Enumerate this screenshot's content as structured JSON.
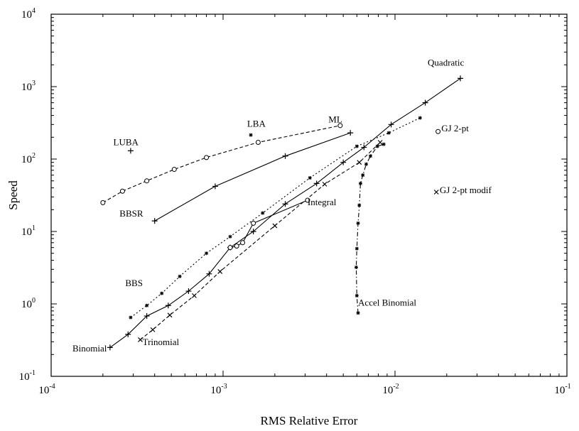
{
  "chart_data": {
    "type": "scatter",
    "title": "",
    "xlabel": "RMS Relative Error",
    "ylabel": "Speed",
    "xscale": "log",
    "yscale": "log",
    "xlim": [
      0.0001,
      0.1
    ],
    "ylim": [
      0.1,
      10000
    ],
    "grid": false,
    "x_ticks": [
      {
        "value": 0.0001,
        "base": "10",
        "exp": "-4"
      },
      {
        "value": 0.001,
        "base": "10",
        "exp": "-3"
      },
      {
        "value": 0.01,
        "base": "10",
        "exp": "-2"
      },
      {
        "value": 0.1,
        "base": "10",
        "exp": "-1"
      }
    ],
    "y_ticks": [
      {
        "value": 0.1,
        "base": "10",
        "exp": "-1"
      },
      {
        "value": 1,
        "base": "10",
        "exp": "0"
      },
      {
        "value": 10,
        "base": "10",
        "exp": "1"
      },
      {
        "value": 100,
        "base": "10",
        "exp": "2"
      },
      {
        "value": 1000,
        "base": "10",
        "exp": "3"
      },
      {
        "value": 10000,
        "base": "10",
        "exp": "4"
      }
    ],
    "series": [
      {
        "label": "Binomial / Quadratic",
        "marker": "+",
        "line": "solid",
        "x": [
          0.00022,
          0.00028,
          0.00036,
          0.00048,
          0.00063,
          0.00083,
          0.0011,
          0.0015,
          0.0023,
          0.0035,
          0.005,
          0.0066,
          0.0095,
          0.015,
          0.024
        ],
        "y": [
          0.25,
          0.38,
          0.68,
          0.95,
          1.5,
          2.6,
          6.0,
          10,
          24,
          46,
          90,
          145,
          300,
          600,
          1300
        ]
      },
      {
        "label": "BBSR",
        "marker": "+",
        "line": "solid",
        "x": [
          0.0004,
          0.0009,
          0.0023,
          0.0055
        ],
        "y": [
          14,
          42,
          110,
          230
        ]
      },
      {
        "label": "ML",
        "marker": "o",
        "line": "dashed",
        "x": [
          0.0002,
          0.00026,
          0.00036,
          0.00052,
          0.0008,
          0.0016,
          0.0048
        ],
        "y": [
          25,
          36,
          50,
          72,
          105,
          170,
          290
        ]
      },
      {
        "label": "BBS",
        "marker": "*",
        "line": "dotted",
        "x": [
          0.00029,
          0.00036,
          0.00044,
          0.00056,
          0.0008,
          0.0011,
          0.0017,
          0.0032,
          0.006,
          0.0092,
          0.014
        ],
        "y": [
          0.65,
          0.95,
          1.4,
          2.4,
          5.0,
          8.5,
          18,
          55,
          150,
          230,
          370
        ]
      },
      {
        "label": "Trinomial",
        "marker": "x",
        "line": "dashed",
        "x": [
          0.00033,
          0.00039,
          0.00049,
          0.00068,
          0.00096,
          0.002,
          0.0039,
          0.0062,
          0.0082
        ],
        "y": [
          0.32,
          0.44,
          0.7,
          1.3,
          2.8,
          12,
          45,
          90,
          170
        ]
      },
      {
        "label": "Integral",
        "marker": "o",
        "line": "solid",
        "x": [
          0.0011,
          0.0012,
          0.0013,
          0.0015,
          0.0031
        ],
        "y": [
          6.0,
          6.3,
          7.0,
          13,
          27
        ]
      },
      {
        "label": "Accel Binomial",
        "marker": "*",
        "line": "dash-dot",
        "x": [
          0.0061,
          0.006,
          0.00595,
          0.006,
          0.0061,
          0.0062,
          0.0063,
          0.0065,
          0.0068,
          0.0072,
          0.0079,
          0.0086
        ],
        "y": [
          0.75,
          1.3,
          3.2,
          5.8,
          13,
          23,
          46,
          60,
          85,
          110,
          150,
          160
        ]
      },
      {
        "label": "LUBA",
        "marker": "+",
        "line": "none",
        "x": [
          0.00029
        ],
        "y": [
          130
        ]
      },
      {
        "label": "LBA",
        "marker": "*",
        "line": "none",
        "x": [
          0.00145
        ],
        "y": [
          215
        ]
      },
      {
        "label": "GJ 2-pt",
        "marker": "o",
        "line": "none",
        "x": [
          0.0178
        ],
        "y": [
          240
        ]
      },
      {
        "label": "GJ 2-pt modif",
        "marker": "x",
        "line": "none",
        "x": [
          0.0174
        ],
        "y": [
          35
        ]
      }
    ],
    "annotations": [
      {
        "text": "Quadratic",
        "x": 0.0155,
        "y": 1950
      },
      {
        "text": "ML",
        "x": 0.0041,
        "y": 320
      },
      {
        "text": "LBA",
        "x": 0.00138,
        "y": 280
      },
      {
        "text": "LUBA",
        "x": 0.00023,
        "y": 155
      },
      {
        "text": "GJ 2-pt",
        "x": 0.0186,
        "y": 240
      },
      {
        "text": "GJ 2-pt modif",
        "x": 0.0182,
        "y": 34
      },
      {
        "text": "BBSR",
        "x": 0.00025,
        "y": 16
      },
      {
        "text": "Integral",
        "x": 0.0031,
        "y": 23
      },
      {
        "text": "BBS",
        "x": 0.00027,
        "y": 1.75
      },
      {
        "text": "Accel Binomial",
        "x": 0.0061,
        "y": 0.95
      },
      {
        "text": "Binomial",
        "x": 0.000133,
        "y": 0.22
      },
      {
        "text": "Trinomial",
        "x": 0.00034,
        "y": 0.27
      }
    ]
  }
}
